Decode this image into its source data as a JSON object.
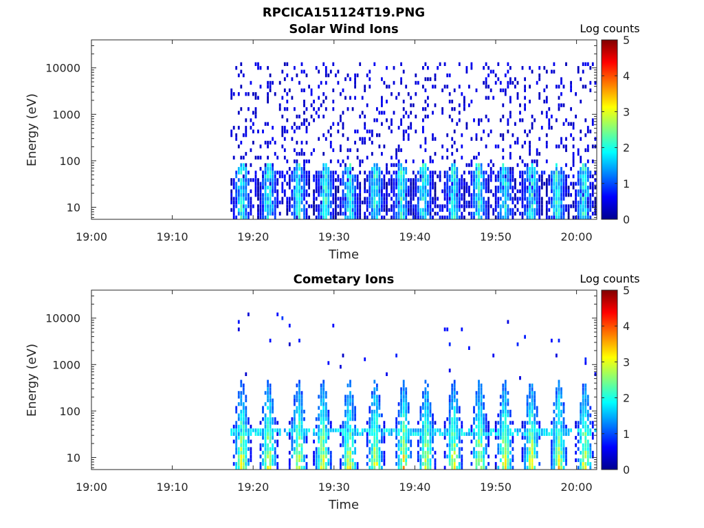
{
  "figure": {
    "title": "RPCICA151124T19.PNG"
  },
  "chart_data": [
    {
      "type": "heatmap",
      "title": "Solar Wind Ions",
      "xlabel": "Time",
      "ylabel": "Energy (eV)",
      "x_tick_labels": [
        "19:00",
        "19:10",
        "19:20",
        "19:30",
        "19:40",
        "19:50",
        "20:00"
      ],
      "x_tick_minutes": [
        0,
        10,
        20,
        30,
        40,
        50,
        60
      ],
      "xlim_minutes": [
        0,
        62.5
      ],
      "y_scale": "log",
      "y_tick_labels": [
        "10",
        "100",
        "1000",
        "10000"
      ],
      "y_tick_values": [
        10,
        100,
        1000,
        10000
      ],
      "ylim": [
        5.5,
        40000
      ],
      "colorbar": {
        "label": "Log counts",
        "range": [
          0,
          5
        ],
        "tick_labels": [
          "0",
          "1",
          "2",
          "3",
          "4",
          "5"
        ],
        "colormap": "jet"
      },
      "data_start_minute": 17.2,
      "data_end_minute": 62.3,
      "bursts_minute": [
        18.5,
        21.8,
        25.5,
        28.8,
        31.8,
        35.0,
        38.2,
        41.0,
        44.7,
        47.8,
        51.0,
        54.3,
        57.5,
        60.8
      ],
      "burst_peak_log_counts": 2.5,
      "burst_energy_range_eV": [
        5.5,
        60
      ],
      "background_energy_range_eV": [
        7,
        12000
      ],
      "background_log_counts": 0.2
    },
    {
      "type": "heatmap",
      "title": "Cometary Ions",
      "xlabel": "Time",
      "ylabel": "Energy (eV)",
      "x_tick_labels": [
        "19:00",
        "19:10",
        "19:20",
        "19:30",
        "19:40",
        "19:50",
        "20:00"
      ],
      "x_tick_minutes": [
        0,
        10,
        20,
        30,
        40,
        50,
        60
      ],
      "xlim_minutes": [
        0,
        62.5
      ],
      "y_scale": "log",
      "y_tick_labels": [
        "10",
        "100",
        "1000",
        "10000"
      ],
      "y_tick_values": [
        10,
        100,
        1000,
        10000
      ],
      "ylim": [
        5.5,
        40000
      ],
      "colorbar": {
        "label": "Log counts",
        "range": [
          0,
          5
        ],
        "tick_labels": [
          "0",
          "1",
          "2",
          "3",
          "4",
          "5"
        ],
        "colormap": "jet"
      },
      "data_start_minute": 17.2,
      "data_end_minute": 62.3,
      "bursts_minute": [
        18.5,
        21.8,
        25.5,
        28.5,
        31.8,
        35.0,
        38.5,
        41.3,
        44.7,
        47.9,
        51.0,
        54.3,
        57.7,
        60.9
      ],
      "burst_peak_log_counts": 3.8,
      "burst_energy_range_eV": [
        5.5,
        500
      ],
      "band_energy_eV": [
        30,
        45
      ],
      "band_log_counts": 1.3,
      "sparse_high_energy_range_eV": [
        500,
        13000
      ]
    }
  ]
}
